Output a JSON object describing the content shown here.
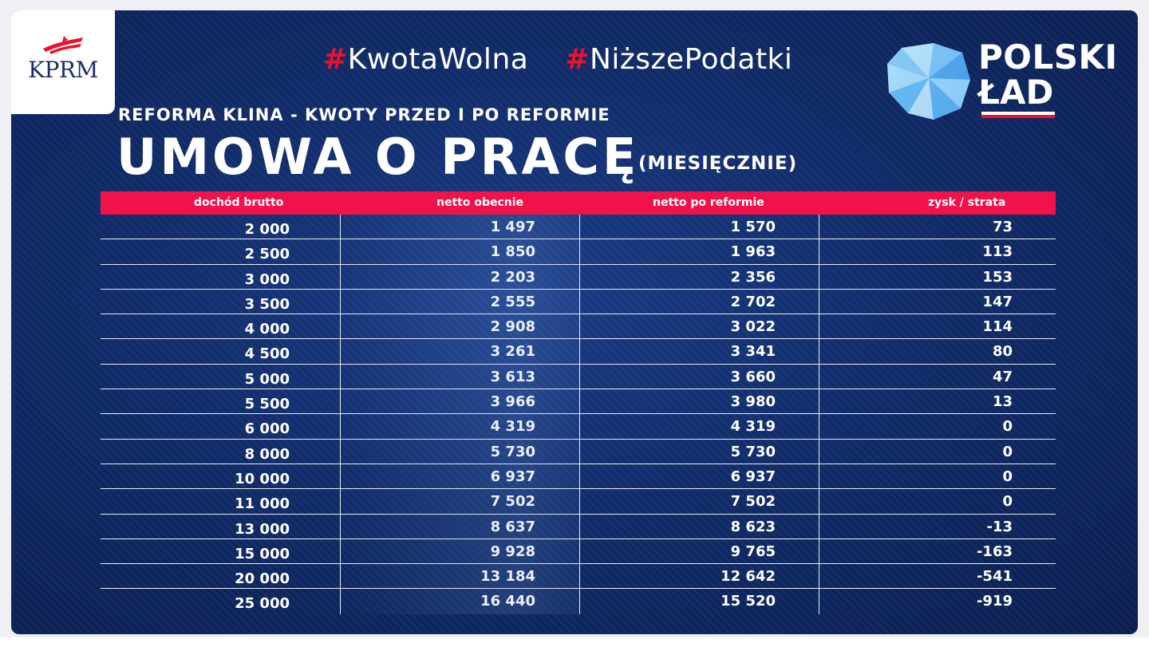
{
  "kprm": {
    "label": "KPRM"
  },
  "hashtags": [
    {
      "hash": "#",
      "text": "KwotaWolna"
    },
    {
      "hash": "#",
      "text": "NiższePodatki"
    }
  ],
  "logo": {
    "line1": "POLSKI",
    "line2": "ŁAD"
  },
  "subtitle": "REFORMA KLINA - KWOTY PRZED I PO REFORMIE",
  "title": "UMOWA O PRACĘ",
  "title_note": "(MIESIĘCZNIE)",
  "colors": {
    "background": "#112c69",
    "header_bar": "#f0134a",
    "hash": "#e8122f",
    "text": "#ffffff"
  },
  "chart_data": {
    "type": "table",
    "columns": [
      "dochód brutto",
      "netto obecnie",
      "netto po reformie",
      "zysk / strata"
    ],
    "rows": [
      [
        "2 000",
        "1 497",
        "1 570",
        "73"
      ],
      [
        "2 500",
        "1 850",
        "1 963",
        "113"
      ],
      [
        "3 000",
        "2 203",
        "2 356",
        "153"
      ],
      [
        "3 500",
        "2 555",
        "2 702",
        "147"
      ],
      [
        "4 000",
        "2 908",
        "3 022",
        "114"
      ],
      [
        "4 500",
        "3 261",
        "3 341",
        "80"
      ],
      [
        "5 000",
        "3 613",
        "3 660",
        "47"
      ],
      [
        "5 500",
        "3 966",
        "3 980",
        "13"
      ],
      [
        "6 000",
        "4 319",
        "4 319",
        "0"
      ],
      [
        "8 000",
        "5 730",
        "5 730",
        "0"
      ],
      [
        "10 000",
        "6 937",
        "6 937",
        "0"
      ],
      [
        "11 000",
        "7 502",
        "7 502",
        "0"
      ],
      [
        "13 000",
        "8 637",
        "8 623",
        "-13"
      ],
      [
        "15 000",
        "9 928",
        "9 765",
        "-163"
      ],
      [
        "20 000",
        "13 184",
        "12 642",
        "-541"
      ],
      [
        "25 000",
        "16 440",
        "15 520",
        "-919"
      ]
    ]
  }
}
